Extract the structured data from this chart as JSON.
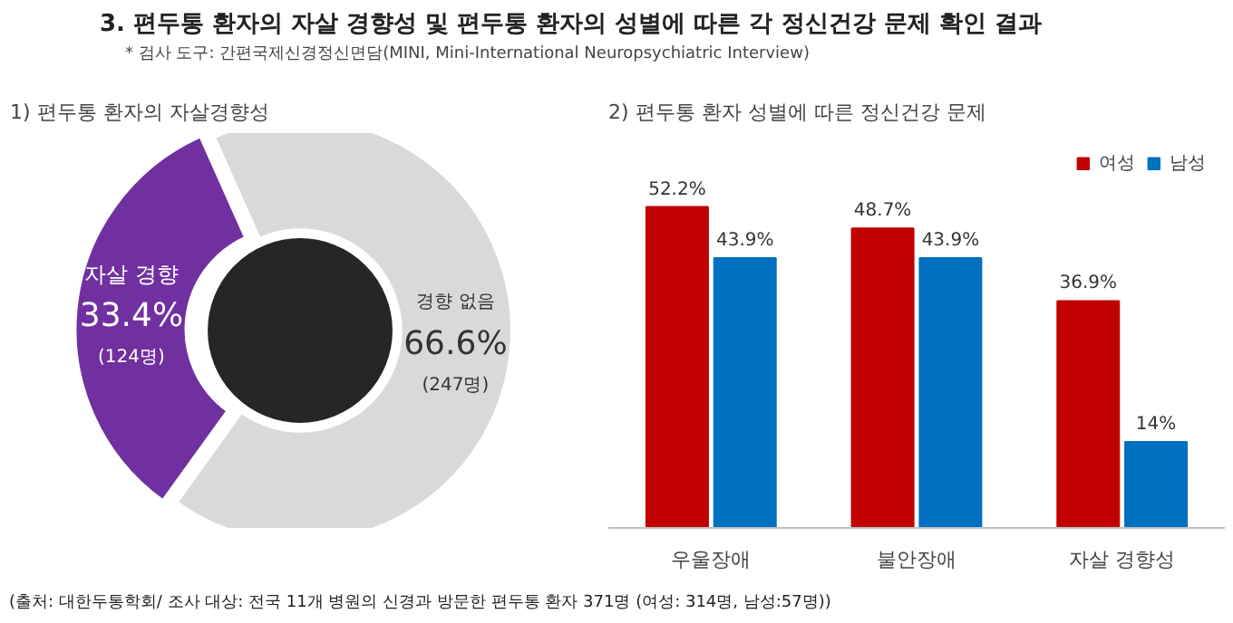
{
  "chart_data": [
    {
      "type": "donut",
      "title": "1) 편두통 환자의 자살경향성",
      "categories": [
        "자살 경향",
        "경향 없음"
      ],
      "values": [
        33.4,
        66.6
      ],
      "colors": [
        "#7030a0",
        "#d9d9d9"
      ],
      "value_labels": [
        "33.4%",
        "66.6%"
      ],
      "annotations": [
        "3. 편두통 환자의 자살 경향성 및 편두통 환자의 성별에 따른 각 정신건강 문제 확인 결과",
        "* 검사 도구: 간편국제신경정신면담(MINI,  Mini-International Neuropsychiatric Interview)",
        "(124명)",
        "(247명)"
      ]
    },
    {
      "type": "bar",
      "title": "2) 편두통 환자 성별에 따른 정신건강 문제",
      "categories": [
        "우울장애",
        "불안장애",
        "자살 경향성"
      ],
      "legend": "top right",
      "series": [
        {
          "name": "여성",
          "color": "#c00000",
          "values": [
            52.2,
            48.7,
            36.9
          ],
          "value_labels": [
            "52.2%",
            "48.7%",
            "36.9%"
          ]
        },
        {
          "name": "남성",
          "color": "#0070c0",
          "values": [
            43.9,
            43.9,
            14
          ],
          "value_labels": [
            "43.9%",
            "43.9%",
            "14%"
          ]
        }
      ],
      "annotations": [
        "(출처: 대한두통학회/ 조사 대상: 전국 11개 병원의 신경과 방문한 편두통 환자 371명 (여성: 314명, 남성:57명))"
      ]
    }
  ]
}
